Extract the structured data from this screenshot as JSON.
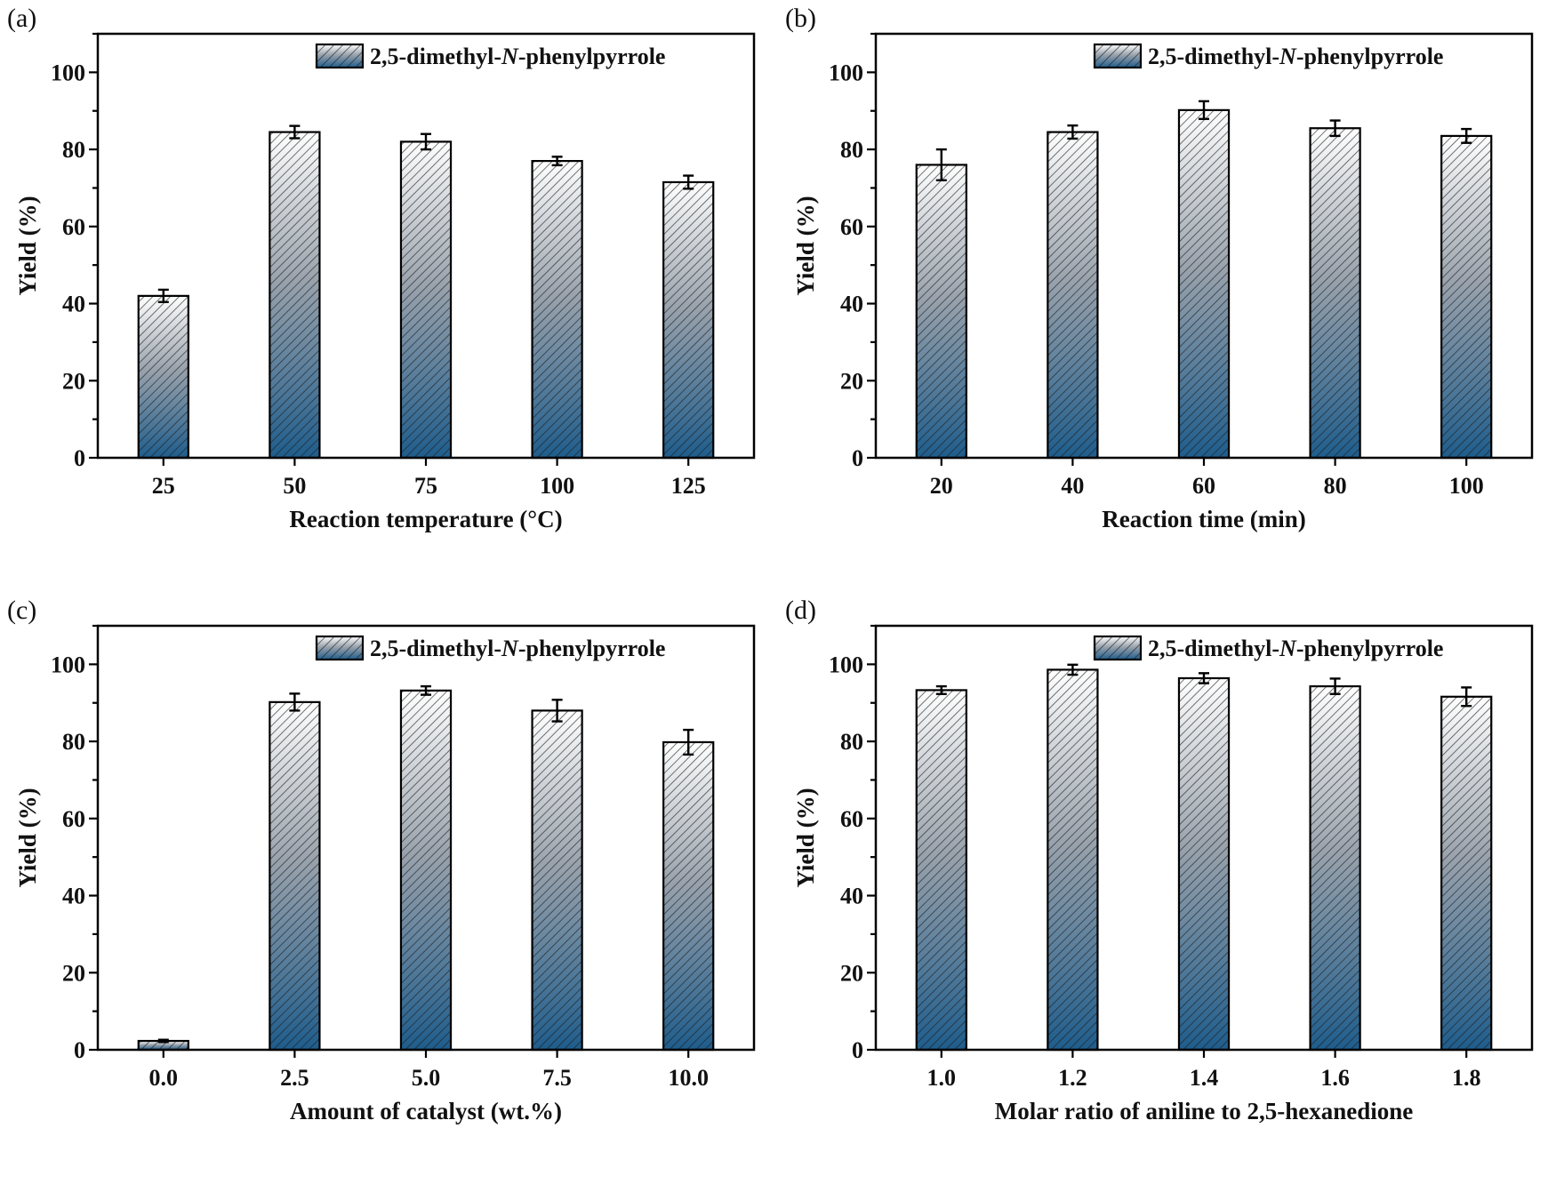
{
  "figure": {
    "panels": [
      "(a)",
      "(b)",
      "(c)",
      "(d)"
    ]
  },
  "colors": {
    "bar_top": "#ffffff",
    "bar_bottom": "#1f5d8c",
    "hatch": "#1a1a1a"
  },
  "chart_data": [
    {
      "type": "bar",
      "panel": "(a)",
      "legend_prefix": "2,5-dimethyl-",
      "legend_italic": "N",
      "legend_suffix": "-phenylpyrrole",
      "series_name": "2,5-dimethyl-N-phenylpyrrole",
      "categories": [
        "25",
        "50",
        "75",
        "100",
        "125"
      ],
      "values": [
        42.0,
        84.5,
        82.0,
        77.0,
        71.5
      ],
      "errors": [
        1.6,
        1.6,
        2.0,
        1.1,
        1.7
      ],
      "xlabel": "Reaction temperature (°C)",
      "ylabel": "Yield (%)",
      "ylim": [
        0,
        110
      ],
      "yticks": [
        0,
        20,
        40,
        60,
        80,
        100
      ],
      "legend_position": "top-right"
    },
    {
      "type": "bar",
      "panel": "(b)",
      "legend_prefix": "2,5-dimethyl-",
      "legend_italic": "N",
      "legend_suffix": "-phenylpyrrole",
      "series_name": "2,5-dimethyl-N-phenylpyrrole",
      "categories": [
        "20",
        "40",
        "60",
        "80",
        "100"
      ],
      "values": [
        76.0,
        84.5,
        90.2,
        85.5,
        83.5
      ],
      "errors": [
        4.0,
        1.7,
        2.3,
        2.0,
        1.8
      ],
      "xlabel": "Reaction time (min)",
      "ylabel": "Yield (%)",
      "ylim": [
        0,
        110
      ],
      "yticks": [
        0,
        20,
        40,
        60,
        80,
        100
      ],
      "legend_position": "top-right"
    },
    {
      "type": "bar",
      "panel": "(c)",
      "legend_prefix": "2,5-dimethyl-",
      "legend_italic": "N",
      "legend_suffix": "-phenylpyrrole",
      "series_name": "2,5-dimethyl-N-phenylpyrrole",
      "categories": [
        "0.0",
        "2.5",
        "5.0",
        "7.5",
        "10.0"
      ],
      "values": [
        2.3,
        90.2,
        93.2,
        88.0,
        79.8
      ],
      "errors": [
        0.3,
        2.2,
        1.1,
        2.8,
        3.2
      ],
      "xlabel": "Amount of catalyst (wt.%)",
      "ylabel": "Yield (%)",
      "ylim": [
        0,
        110
      ],
      "yticks": [
        0,
        20,
        40,
        60,
        80,
        100
      ],
      "legend_position": "top-right"
    },
    {
      "type": "bar",
      "panel": "(d)",
      "legend_prefix": "2,5-dimethyl-",
      "legend_italic": "N",
      "legend_suffix": "-phenylpyrrole",
      "series_name": "2,5-dimethyl-N-phenylpyrrole",
      "categories": [
        "1.0",
        "1.2",
        "1.4",
        "1.6",
        "1.8"
      ],
      "values": [
        93.3,
        98.6,
        96.4,
        94.3,
        91.6
      ],
      "errors": [
        1.0,
        1.3,
        1.3,
        2.0,
        2.4
      ],
      "xlabel": "Molar ratio of aniline to 2,5-hexanedione",
      "ylabel": "Yield (%)",
      "ylim": [
        0,
        110
      ],
      "yticks": [
        0,
        20,
        40,
        60,
        80,
        100
      ],
      "legend_position": "top-right"
    }
  ]
}
